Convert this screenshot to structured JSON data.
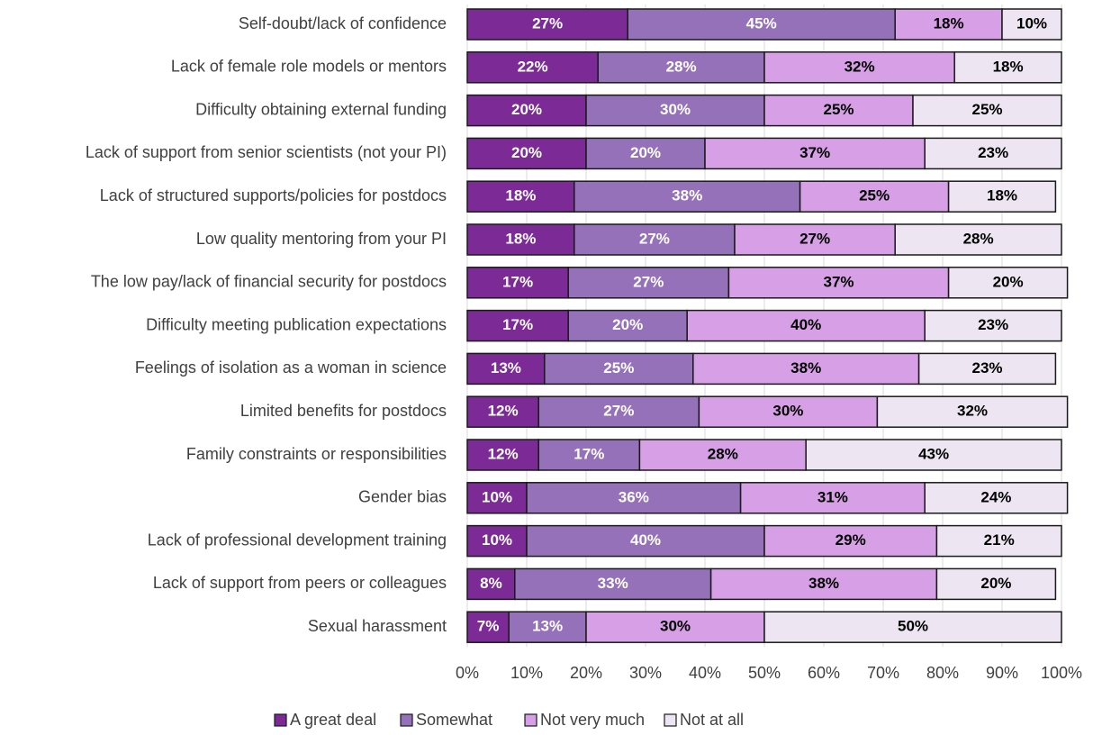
{
  "chart_data": {
    "type": "stacked_barh",
    "categories": [
      "Self-doubt/lack of confidence",
      "Lack of female role models or mentors",
      "Difficulty obtaining external funding",
      "Lack of support from senior scientists (not your PI)",
      "Lack of structured supports/policies for postdocs",
      "Low quality mentoring from your PI",
      "The low pay/lack of financial security for postdocs",
      "Difficulty meeting publication expectations",
      "Feelings of isolation as a woman in science",
      "Limited benefits for postdocs",
      "Family constraints or responsibilities",
      "Gender bias",
      "Lack of professional development training",
      "Lack of support from peers or colleagues",
      "Sexual harassment"
    ],
    "series": [
      {
        "name": "A great deal",
        "color": "#7b2a96",
        "label_color": "#ffffff",
        "values": [
          27,
          22,
          20,
          20,
          18,
          18,
          17,
          17,
          13,
          12,
          12,
          10,
          10,
          8,
          7
        ],
        "value_labels": [
          "27%",
          "22%",
          "20%",
          "20%",
          "18%",
          "18%",
          "17%",
          "17%",
          "13%",
          "12%",
          "12%",
          "10%",
          "10%",
          "8%",
          "7%"
        ]
      },
      {
        "name": "Somewhat",
        "color": "#9471b9",
        "label_color": "#ffffff",
        "values": [
          45,
          28,
          30,
          20,
          38,
          27,
          27,
          20,
          25,
          27,
          17,
          36,
          40,
          33,
          13
        ],
        "value_labels": [
          "45%",
          "28%",
          "30%",
          "20%",
          "38%",
          "27%",
          "27%",
          "20%",
          "25%",
          "27%",
          "17%",
          "36%",
          "40%",
          "33%",
          "13%"
        ]
      },
      {
        "name": "Not very much",
        "color": "#d79fe5",
        "label_color": "#000000",
        "values": [
          18,
          32,
          25,
          37,
          25,
          27,
          37,
          40,
          38,
          30,
          28,
          31,
          29,
          38,
          30
        ],
        "value_labels": [
          "18%",
          "32%",
          "25%",
          "37%",
          "25%",
          "27%",
          "37%",
          "40%",
          "38%",
          "30%",
          "28%",
          "31%",
          "29%",
          "38%",
          "30%"
        ]
      },
      {
        "name": "Not at all",
        "color": "#ede6f2",
        "label_color": "#000000",
        "values": [
          10,
          18,
          25,
          23,
          18,
          28,
          20,
          23,
          23,
          32,
          43,
          24,
          21,
          20,
          50
        ],
        "value_labels": [
          "10%",
          "18%",
          "25%",
          "23%",
          "18%",
          "28%",
          "20%",
          "23%",
          "23%",
          "32%",
          "43%",
          "24%",
          "21%",
          "20%",
          "50%"
        ]
      }
    ],
    "xlim": [
      0,
      100
    ],
    "xticks": [
      {
        "value": 0,
        "label": "0%"
      },
      {
        "value": 10,
        "label": "10%"
      },
      {
        "value": 20,
        "label": "20%"
      },
      {
        "value": 30,
        "label": "30%"
      },
      {
        "value": 40,
        "label": "40%"
      },
      {
        "value": 50,
        "label": "50%"
      },
      {
        "value": 60,
        "label": "60%"
      },
      {
        "value": 70,
        "label": "70%"
      },
      {
        "value": 80,
        "label": "80%"
      },
      {
        "value": 90,
        "label": "90%"
      },
      {
        "value": 100,
        "label": "100%"
      }
    ],
    "grid": true,
    "legend": "bottom"
  }
}
